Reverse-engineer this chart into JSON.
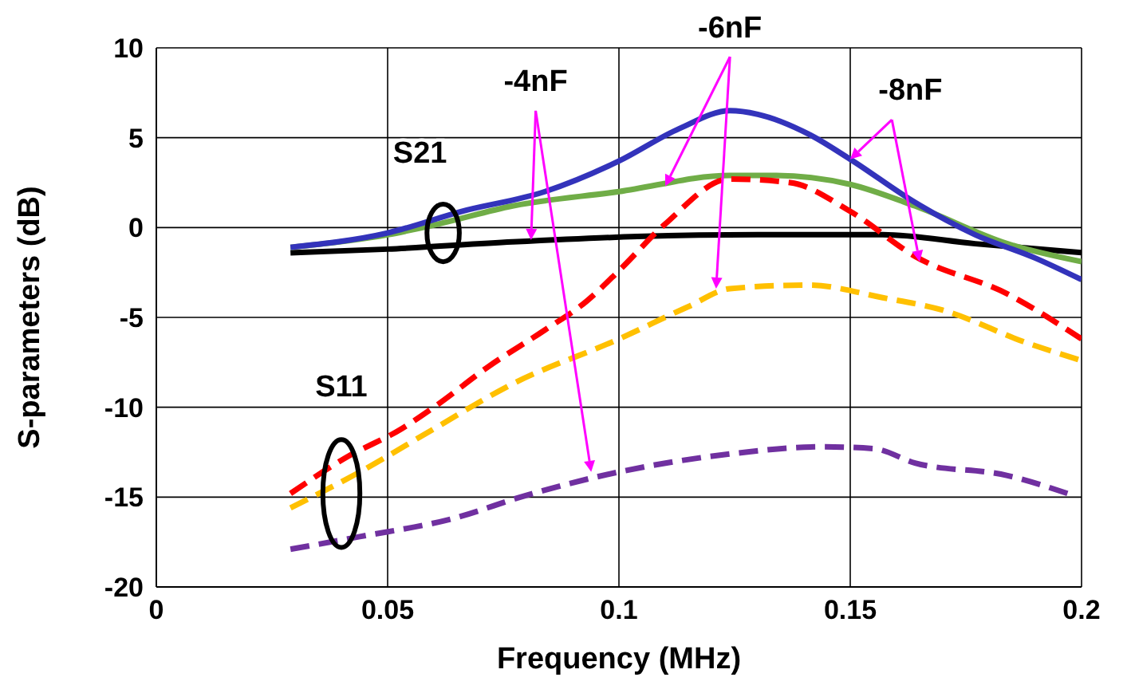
{
  "chart_data": {
    "type": "line",
    "xlabel": "Frequency (MHz)",
    "ylabel": "S-parameters (dB)",
    "xlim": [
      0,
      0.2
    ],
    "xticks": [
      0,
      0.05,
      0.1,
      0.15,
      0.2
    ],
    "ylim": [
      -20,
      10
    ],
    "yticks": [
      -20,
      -15,
      -10,
      -5,
      0,
      5,
      10
    ],
    "grid": true,
    "marker": "none",
    "annotations": [
      "S21",
      "S11",
      {
        "text": "-4nF",
        "x": 0.081,
        "y": -0.7
      },
      {
        "text": "-6nF",
        "x": 0.11,
        "y": 2.3
      },
      {
        "text": "-8nF",
        "x": 0.15,
        "y": 3.8
      }
    ],
    "series": [
      {
        "color": "#000000",
        "line_style": "solid",
        "x": [
          0.029,
          0.05,
          0.077,
          0.104,
          0.13,
          0.144,
          0.157,
          0.177,
          0.2
        ],
        "values": [
          -1.4,
          -1.2,
          -0.8,
          -0.5,
          -0.4,
          -0.4,
          -0.4,
          -0.9,
          -1.4
        ]
      },
      {
        "color": "#70ad47",
        "line_style": "solid",
        "x": [
          0.029,
          0.05,
          0.061,
          0.077,
          0.1,
          0.124,
          0.134,
          0.15,
          0.164,
          0.184,
          0.2
        ],
        "values": [
          -1.1,
          -0.4,
          0.2,
          1.2,
          2.0,
          2.9,
          2.9,
          2.4,
          1.2,
          -0.9,
          -1.9
        ]
      },
      {
        "color": "#3333bb",
        "line_style": "solid",
        "x": [
          0.029,
          0.05,
          0.066,
          0.084,
          0.1,
          0.113,
          0.124,
          0.13,
          0.141,
          0.15,
          0.164,
          0.177,
          0.19,
          0.2
        ],
        "values": [
          -1.1,
          -0.3,
          0.9,
          2.0,
          3.7,
          5.5,
          6.5,
          6.3,
          5.2,
          3.8,
          1.4,
          -0.4,
          -1.7,
          -2.9
        ]
      },
      {
        "color": "#7030a0",
        "line_style": "dashed",
        "x": [
          0.029,
          0.044,
          0.064,
          0.08,
          0.1,
          0.124,
          0.144,
          0.155,
          0.164,
          0.184,
          0.197
        ],
        "values": [
          -17.9,
          -17.2,
          -16.2,
          -14.9,
          -13.6,
          -12.6,
          -12.2,
          -12.3,
          -13.1,
          -13.8,
          -14.8
        ]
      },
      {
        "color": "#ffc000",
        "line_style": "dashed",
        "x": [
          0.029,
          0.044,
          0.06,
          0.077,
          0.1,
          0.115,
          0.124,
          0.141,
          0.157,
          0.17,
          0.188,
          0.2
        ],
        "values": [
          -15.6,
          -13.6,
          -11.2,
          -8.7,
          -6.2,
          -4.4,
          -3.4,
          -3.2,
          -3.9,
          -4.6,
          -6.4,
          -7.4
        ]
      },
      {
        "color": "#ff0000",
        "line_style": "dashed",
        "x": [
          0.029,
          0.041,
          0.053,
          0.06,
          0.072,
          0.084,
          0.093,
          0.1,
          0.11,
          0.124,
          0.137,
          0.15,
          0.164,
          0.184,
          0.2
        ],
        "values": [
          -14.8,
          -12.8,
          -11.2,
          -10.0,
          -7.7,
          -5.7,
          -4.1,
          -2.4,
          0.2,
          2.7,
          2.5,
          0.9,
          -1.6,
          -3.7,
          -6.2
        ]
      }
    ]
  }
}
